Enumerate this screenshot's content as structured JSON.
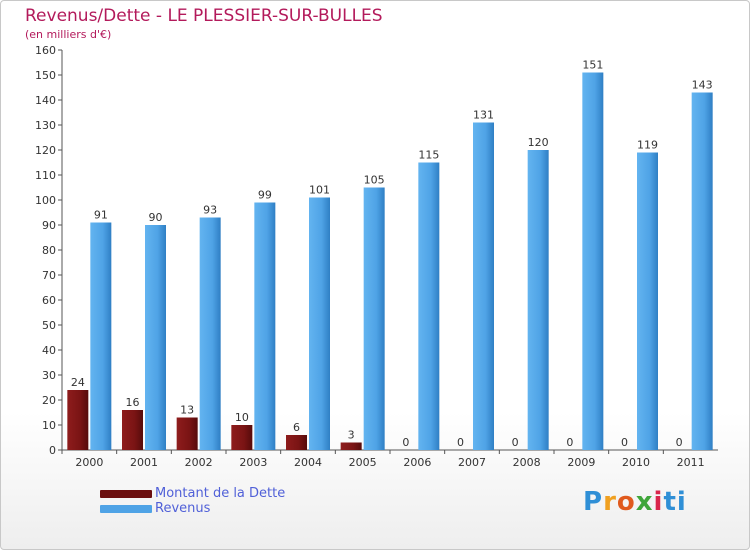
{
  "title": "Revenus/Dette - LE PLESSIER-SUR-BULLES",
  "subtitle": "(en milliers d'€)",
  "colors": {
    "debt": "#7a1414",
    "revenue": "#4fa3e6",
    "title": "#b31a5b",
    "legend_text": "#5060d8"
  },
  "legend": {
    "debt_label": "Montant de la Dette",
    "revenue_label": "Revenus"
  },
  "logo": [
    "P",
    "r",
    "o",
    "x",
    "i",
    "ti"
  ],
  "chart_data": {
    "type": "bar",
    "title": "Revenus/Dette - LE PLESSIER-SUR-BULLES",
    "subtitle": "(en milliers d'€)",
    "xlabel": "",
    "ylabel": "",
    "ylim": [
      0,
      160
    ],
    "yticks": [
      0,
      10,
      20,
      30,
      40,
      50,
      60,
      70,
      80,
      90,
      100,
      110,
      120,
      130,
      140,
      150,
      160
    ],
    "grid": false,
    "legend_position": "bottom-left",
    "categories": [
      "2000",
      "2001",
      "2002",
      "2003",
      "2004",
      "2005",
      "2006",
      "2007",
      "2008",
      "2009",
      "2010",
      "2011"
    ],
    "series": [
      {
        "name": "Montant de la Dette",
        "color": "#7a1414",
        "values": [
          24,
          16,
          13,
          10,
          6,
          3,
          0,
          0,
          0,
          0,
          0,
          0
        ]
      },
      {
        "name": "Revenus",
        "color": "#4fa3e6",
        "values": [
          91,
          90,
          93,
          99,
          101,
          105,
          115,
          131,
          120,
          151,
          119,
          143
        ]
      }
    ]
  }
}
